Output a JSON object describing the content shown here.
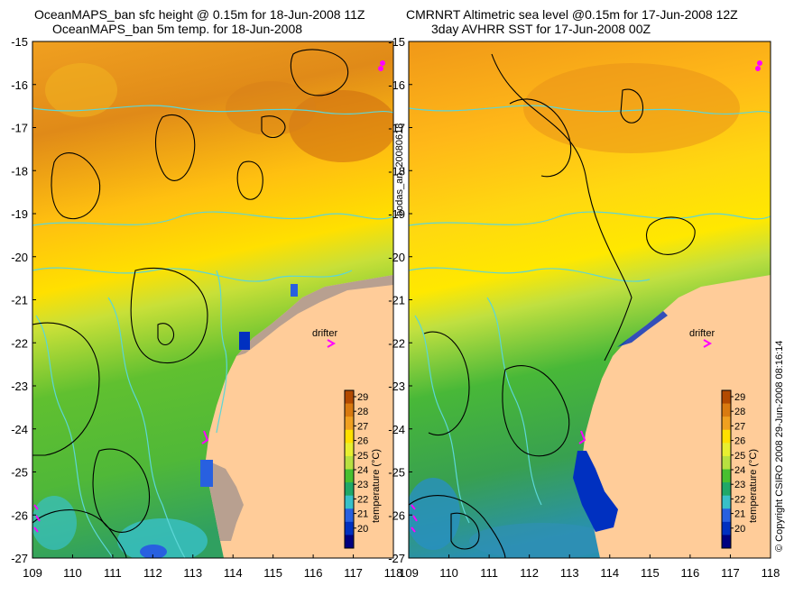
{
  "left_panel": {
    "title_line1": "OceanMAPS_ban sfc height @ 0.15m for 18-Jun-2008 11Z",
    "title_line2": "OceanMAPS_ban 5m temp. for 18-Jun-2008"
  },
  "right_panel": {
    "title_line1": "CMRNRT Altimetric sea level  @0.15m  for 17-Jun-2008 12Z",
    "title_line2": "3day AVHRR SST for 17-Jun-2008 00Z"
  },
  "axis": {
    "y_ticks": [
      "-15",
      "-16",
      "-17",
      "-18",
      "-19",
      "-20",
      "-21",
      "-22",
      "-23",
      "-24",
      "-25",
      "-26",
      "-27"
    ],
    "x_ticks": [
      "109",
      "110",
      "111",
      "112",
      "113",
      "114",
      "115",
      "116",
      "117",
      "118"
    ]
  },
  "colorbar": {
    "label": "temperature (°C)",
    "ticks": [
      "29",
      "28",
      "27",
      "26",
      "25",
      "24",
      "23",
      "22",
      "21",
      "20"
    ],
    "colors": [
      "#b34a00",
      "#d97a10",
      "#f0a020",
      "#ffe000",
      "#e8ef30",
      "#b8e040",
      "#48c030",
      "#20a868",
      "#38c0c8",
      "#2860e0",
      "#0030c0",
      "#000080"
    ]
  },
  "drifter_label": "drifter",
  "side_label": "bodas_an_20080618",
  "copyright": "© Copyright CSIRO 2008  29-Jun-2008 08:16:14",
  "colors": {
    "land": "#ffcc99",
    "coast_shelf": "#c8a890",
    "contour_cyan": "#5cd6d6",
    "drifter": "#ff00ff"
  }
}
